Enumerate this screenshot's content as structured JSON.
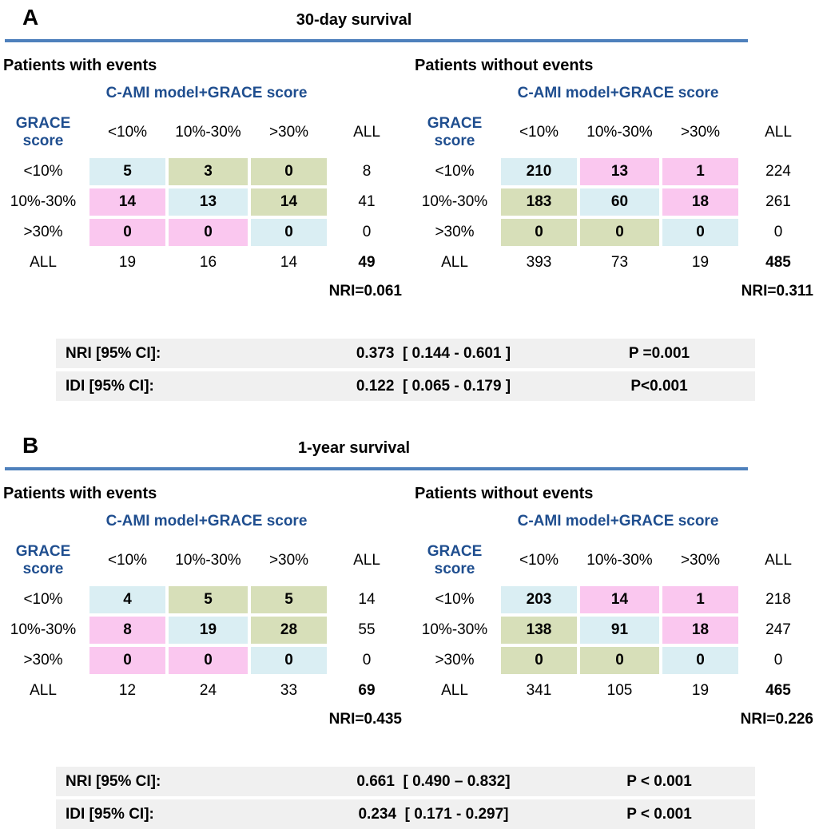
{
  "colors": {
    "cell-blue": "#daeef3",
    "cell-green": "#d7dfb9",
    "cell-pink": "#fac7ef",
    "line-blue": "#4e80bc",
    "header-blue": "#1f4e8f",
    "summary-gray": "#f0f0f0"
  },
  "panels": [
    {
      "label": "A",
      "title": "30-day survival",
      "tables": [
        {
          "caption": "Patients with events",
          "model_header": "C-AMI model+GRACE score",
          "row_axis": "GRACE score",
          "col_headers": [
            "<10%",
            "10%-30%",
            ">30%",
            "ALL"
          ],
          "rows": [
            {
              "label": "<10%",
              "c1": "5",
              "c1bg": "blue",
              "c2": "3",
              "c2bg": "green",
              "c3": "0",
              "c3bg": "green",
              "all": "8"
            },
            {
              "label": "10%-30%",
              "c1": "14",
              "c1bg": "pink",
              "c2": "13",
              "c2bg": "blue",
              "c3": "14",
              "c3bg": "green",
              "all": "41"
            },
            {
              "label": ">30%",
              "c1": "0",
              "c1bg": "pink",
              "c2": "0",
              "c2bg": "pink",
              "c3": "0",
              "c3bg": "blue",
              "all": "0"
            }
          ],
          "total_row": {
            "label": "ALL",
            "c1": "19",
            "c2": "16",
            "c3": "14",
            "all": "49"
          },
          "nri": "NRI=0.061"
        },
        {
          "caption": "Patients without events",
          "model_header": "C-AMI model+GRACE score",
          "row_axis": "GRACE score",
          "col_headers": [
            "<10%",
            "10%-30%",
            ">30%",
            "ALL"
          ],
          "rows": [
            {
              "label": "<10%",
              "c1": "210",
              "c1bg": "blue",
              "c2": "13",
              "c2bg": "pink",
              "c3": "1",
              "c3bg": "pink",
              "all": "224"
            },
            {
              "label": "10%-30%",
              "c1": "183",
              "c1bg": "green",
              "c2": "60",
              "c2bg": "blue",
              "c3": "18",
              "c3bg": "pink",
              "all": "261"
            },
            {
              "label": ">30%",
              "c1": "0",
              "c1bg": "green",
              "c2": "0",
              "c2bg": "green",
              "c3": "0",
              "c3bg": "blue",
              "all": "0"
            }
          ],
          "total_row": {
            "label": "ALL",
            "c1": "393",
            "c2": "73",
            "c3": "19",
            "all": "485"
          },
          "nri": "NRI=0.311"
        }
      ],
      "summary_rows": [
        {
          "label": "NRI [95% CI]:",
          "value": "0.373  [ 0.144 - 0.601 ]",
          "p": "P =0.001"
        },
        {
          "label": "IDI [95% CI]:",
          "value": "0.122  [ 0.065 - 0.179 ]",
          "p": "P<0.001"
        }
      ]
    },
    {
      "label": "B",
      "title": "1-year survival",
      "tables": [
        {
          "caption": "Patients with events",
          "model_header": "C-AMI model+GRACE score",
          "row_axis": "GRACE score",
          "col_headers": [
            "<10%",
            "10%-30%",
            ">30%",
            "ALL"
          ],
          "rows": [
            {
              "label": "<10%",
              "c1": "4",
              "c1bg": "blue",
              "c2": "5",
              "c2bg": "green",
              "c3": "5",
              "c3bg": "green",
              "all": "14"
            },
            {
              "label": "10%-30%",
              "c1": "8",
              "c1bg": "pink",
              "c2": "19",
              "c2bg": "blue",
              "c3": "28",
              "c3bg": "green",
              "all": "55"
            },
            {
              "label": ">30%",
              "c1": "0",
              "c1bg": "pink",
              "c2": "0",
              "c2bg": "pink",
              "c3": "0",
              "c3bg": "blue",
              "all": "0"
            }
          ],
          "total_row": {
            "label": "ALL",
            "c1": "12",
            "c2": "24",
            "c3": "33",
            "all": "69"
          },
          "nri": "NRI=0.435"
        },
        {
          "caption": "Patients without events",
          "model_header": "C-AMI model+GRACE score",
          "row_axis": "GRACE score",
          "col_headers": [
            "<10%",
            "10%-30%",
            ">30%",
            "ALL"
          ],
          "rows": [
            {
              "label": "<10%",
              "c1": "203",
              "c1bg": "blue",
              "c2": "14",
              "c2bg": "pink",
              "c3": "1",
              "c3bg": "pink",
              "all": "218"
            },
            {
              "label": "10%-30%",
              "c1": "138",
              "c1bg": "green",
              "c2": "91",
              "c2bg": "blue",
              "c3": "18",
              "c3bg": "pink",
              "all": "247"
            },
            {
              "label": ">30%",
              "c1": "0",
              "c1bg": "green",
              "c2": "0",
              "c2bg": "green",
              "c3": "0",
              "c3bg": "blue",
              "all": "0"
            }
          ],
          "total_row": {
            "label": "ALL",
            "c1": "341",
            "c2": "105",
            "c3": "19",
            "all": "465"
          },
          "nri": "NRI=0.226"
        }
      ],
      "summary_rows": [
        {
          "label": "NRI [95% CI]:",
          "value": "0.661  [ 0.490 – 0.832]",
          "p": "P < 0.001"
        },
        {
          "label": "IDI [95% CI]:",
          "value": "0.234  [ 0.171 - 0.297]",
          "p": "P < 0.001"
        }
      ]
    }
  ]
}
